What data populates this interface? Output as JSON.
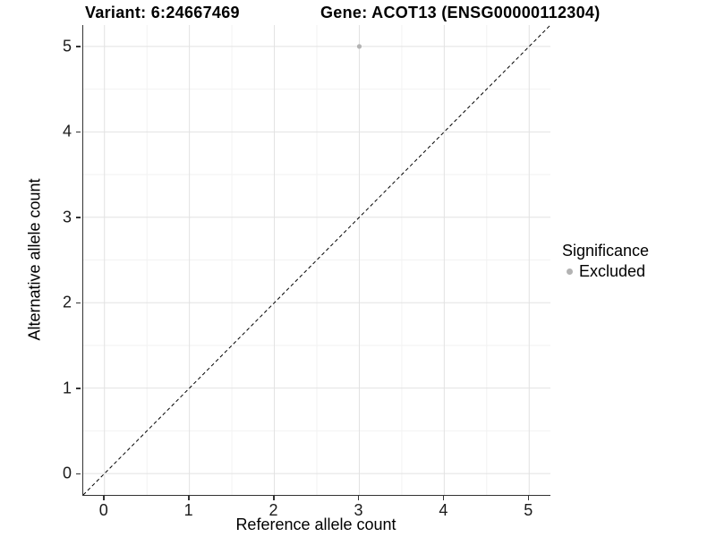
{
  "figure": {
    "title_left": "Variant: 6:24667469",
    "title_right": "Gene: ACOT13 (ENSG00000112304)"
  },
  "chart_data": {
    "type": "scatter",
    "title": "Variant: 6:24667469   Gene: ACOT13 (ENSG00000112304)",
    "xlabel": "Reference allele count",
    "ylabel": "Alternative allele count",
    "xlim": [
      -0.25,
      5.25
    ],
    "ylim": [
      -0.25,
      5.25
    ],
    "xticks": [
      0,
      1,
      2,
      3,
      4,
      5
    ],
    "yticks": [
      0,
      1,
      2,
      3,
      4,
      5
    ],
    "grid": "major and minor gridlines, white panel background",
    "series": [
      {
        "name": "Excluded",
        "marker": "circle",
        "color": "#b3b3b3",
        "points": [
          {
            "x": 3,
            "y": 5
          }
        ]
      }
    ],
    "annotations": [
      {
        "type": "abline",
        "slope": 1,
        "intercept": 0,
        "linestyle": "dashed",
        "color": "#000000",
        "label": "identity line y = x"
      }
    ],
    "legend": {
      "title": "Significance",
      "position": "right",
      "entries": [
        {
          "label": "Excluded",
          "color": "#b3b3b3",
          "marker": "circle"
        }
      ]
    }
  },
  "colors": {
    "background": "#ffffff",
    "grid_major": "#e2e2e2",
    "grid_minor": "#f2f2f2",
    "axis_line": "#333333",
    "tick_mark": "#333333",
    "tick_text": "#1a1a1a",
    "title_text": "#000000",
    "point": "#b3b3b3"
  }
}
